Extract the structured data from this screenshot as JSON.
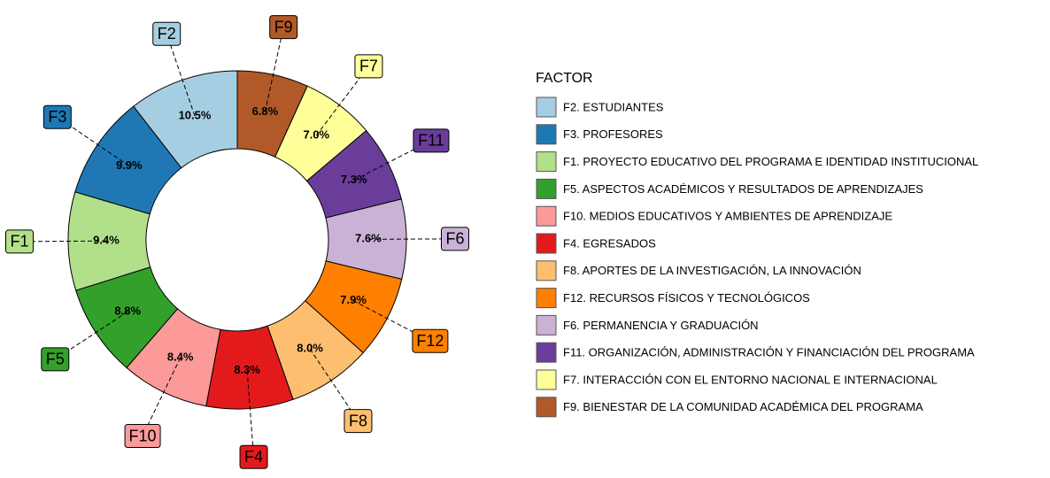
{
  "chart_data": {
    "type": "donut",
    "legend_title": "FACTOR",
    "categories": [
      "F2",
      "F3",
      "F1",
      "F5",
      "F10",
      "F4",
      "F8",
      "F12",
      "F6",
      "F11",
      "F7",
      "F9"
    ],
    "legend_labels": [
      "F2. ESTUDIANTES",
      "F3. PROFESORES",
      "F1. PROYECTO EDUCATIVO DEL PROGRAMA E IDENTIDAD INSTITUCIONAL",
      "F5. ASPECTOS ACADÉMICOS Y RESULTADOS DE APRENDIZAJES",
      "F10. MEDIOS EDUCATIVOS Y AMBIENTES DE APRENDIZAJE",
      "F4. EGRESADOS",
      "F8. APORTES DE LA INVESTIGACIÓN, LA INNOVACIÓN",
      "F12. RECURSOS FÍSICOS Y TECNOLÓGICOS",
      "F6. PERMANENCIA Y GRADUACIÓN",
      "F11. ORGANIZACIÓN, ADMINISTRACIÓN Y FINANCIACIÓN DEL PROGRAMA",
      "F7. INTERACCIÓN CON EL ENTORNO NACIONAL E INTERNACIONAL",
      "F9. BIENESTAR DE LA COMUNIDAD ACADÉMICA DEL PROGRAMA"
    ],
    "values": [
      10.5,
      9.9,
      9.4,
      8.8,
      8.4,
      8.3,
      8.0,
      7.9,
      7.6,
      7.3,
      7.0,
      6.8
    ],
    "value_labels": [
      "10.5%",
      "9.9%",
      "9.4%",
      "8.8%",
      "8.4%",
      "8.3%",
      "8.0%",
      "7.9%",
      "7.6%",
      "7.3%",
      "7.0%",
      "6.8%"
    ],
    "colors": [
      "#a6cee3",
      "#1f78b4",
      "#b2df8a",
      "#33a02c",
      "#fb9a99",
      "#e31a1c",
      "#fdbf6f",
      "#ff7f00",
      "#cab2d6",
      "#6a3d9a",
      "#ffff99",
      "#b15928"
    ]
  }
}
